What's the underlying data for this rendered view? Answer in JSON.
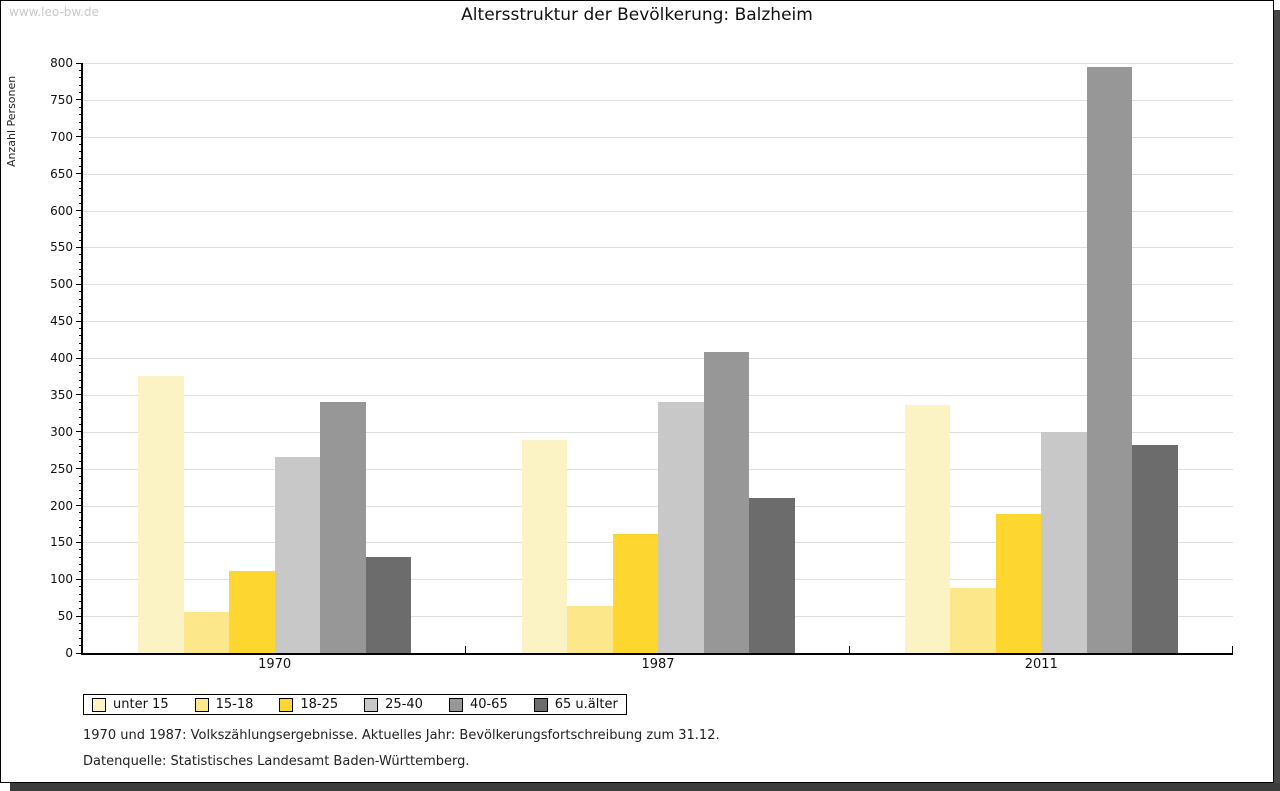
{
  "page": {
    "watermark": "www.leo-bw.de",
    "footnote_line1": "1970 und 1987: Volkszählungsergebnisse. Aktuelles Jahr: Bevölkerungsfortschreibung zum 31.12.",
    "footnote_line2": "Datenquelle: Statistisches Landesamt Baden-Württemberg."
  },
  "chart_data": {
    "type": "bar",
    "title": "Altersstruktur der Bevölkerung: Balzheim",
    "xlabel": "",
    "ylabel": "Anzahl Personen",
    "categories": [
      "1970",
      "1987",
      "2011"
    ],
    "series": [
      {
        "name": "unter 15",
        "color": "#FCF3C5",
        "values": [
          375,
          289,
          336
        ]
      },
      {
        "name": "15-18",
        "color": "#FCE88A",
        "values": [
          55,
          64,
          88
        ]
      },
      {
        "name": "18-25",
        "color": "#FDD630",
        "values": [
          111,
          161,
          188
        ]
      },
      {
        "name": "25-40",
        "color": "#C8C8C8",
        "values": [
          266,
          341,
          300
        ]
      },
      {
        "name": "40-65",
        "color": "#979797",
        "values": [
          340,
          408,
          795
        ]
      },
      {
        "name": "65 u.älter",
        "color": "#6C6C6C",
        "values": [
          130,
          210,
          282
        ]
      }
    ],
    "ylim": [
      0,
      800
    ],
    "ytick_step": 50,
    "y_minor_tick_step": 10,
    "grid": true,
    "legend_position": "bottom-left",
    "gridline_color": "#dedede",
    "axis_color": "#000000"
  }
}
